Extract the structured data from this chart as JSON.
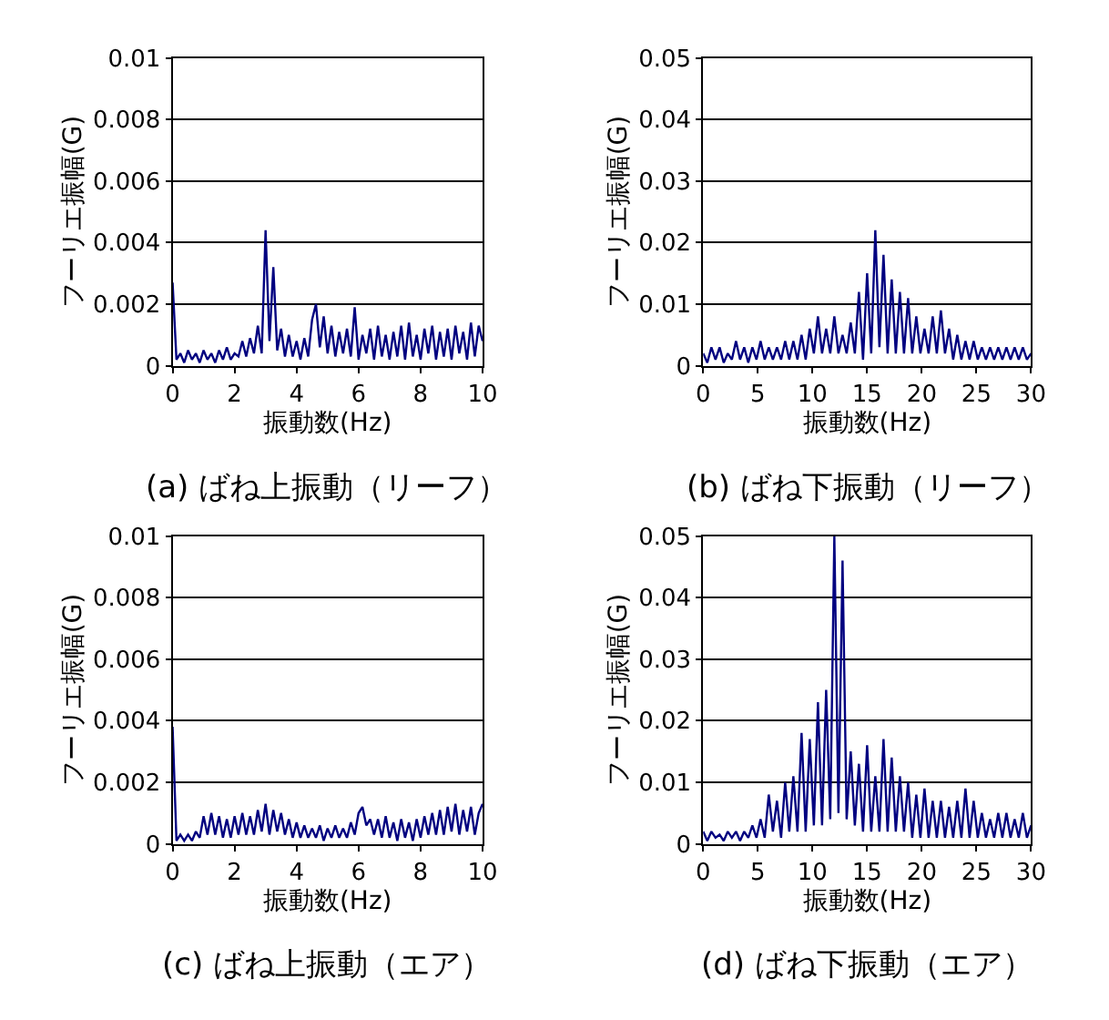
{
  "chart_data": [
    {
      "type": "line",
      "title": "(a) ばね上振動（リーフ）",
      "xlabel": "振動数(Hz)",
      "ylabel": "フーリエ振幅(G)",
      "xlim": [
        0,
        10
      ],
      "xticks": [
        0,
        2,
        4,
        6,
        8,
        10
      ],
      "ylim": [
        0,
        0.01
      ],
      "yticks": [
        0,
        0.002,
        0.004,
        0.006,
        0.008,
        0.01
      ],
      "grid": "y",
      "series": [
        {
          "color": "#000080",
          "x": [
            0,
            0.125,
            0.25,
            0.375,
            0.5,
            0.625,
            0.75,
            0.875,
            1.0,
            1.125,
            1.25,
            1.375,
            1.5,
            1.625,
            1.75,
            1.875,
            2.0,
            2.125,
            2.25,
            2.375,
            2.5,
            2.625,
            2.75,
            2.875,
            3.0,
            3.125,
            3.25,
            3.375,
            3.5,
            3.625,
            3.75,
            3.875,
            4.0,
            4.125,
            4.25,
            4.375,
            4.5,
            4.625,
            4.75,
            4.875,
            5.0,
            5.125,
            5.25,
            5.375,
            5.5,
            5.625,
            5.75,
            5.875,
            6.0,
            6.125,
            6.25,
            6.375,
            6.5,
            6.625,
            6.75,
            6.875,
            7.0,
            7.125,
            7.25,
            7.375,
            7.5,
            7.625,
            7.75,
            7.875,
            8.0,
            8.125,
            8.25,
            8.375,
            8.5,
            8.625,
            8.75,
            8.875,
            9.0,
            9.125,
            9.25,
            9.375,
            9.5,
            9.625,
            9.75,
            9.875,
            10.0
          ],
          "values": [
            0.0027,
            0.0002,
            0.0004,
            0.0001,
            0.0005,
            0.0002,
            0.0004,
            0.0001,
            0.0005,
            0.0002,
            0.0004,
            0.0001,
            0.0005,
            0.0002,
            0.0006,
            0.0002,
            0.0004,
            0.0003,
            0.0008,
            0.0003,
            0.0009,
            0.0004,
            0.0013,
            0.0004,
            0.0044,
            0.0008,
            0.0032,
            0.0005,
            0.0012,
            0.0003,
            0.001,
            0.0003,
            0.0008,
            0.0002,
            0.0009,
            0.0003,
            0.0015,
            0.002,
            0.0006,
            0.0016,
            0.0004,
            0.0013,
            0.0003,
            0.0011,
            0.0004,
            0.0012,
            0.0003,
            0.0019,
            0.0002,
            0.001,
            0.0004,
            0.0012,
            0.0002,
            0.0013,
            0.0003,
            0.001,
            0.0002,
            0.0011,
            0.0003,
            0.0013,
            0.0002,
            0.0014,
            0.0003,
            0.001,
            0.0002,
            0.0012,
            0.0004,
            0.0013,
            0.0002,
            0.0011,
            0.0003,
            0.0012,
            0.0002,
            0.0013,
            0.0004,
            0.0011,
            0.0002,
            0.0014,
            0.0003,
            0.0013,
            0.0008
          ]
        }
      ]
    },
    {
      "type": "line",
      "title": "(b) ばね下振動（リーフ）",
      "xlabel": "振動数(Hz)",
      "ylabel": "フーリエ振幅(G)",
      "xlim": [
        0,
        30
      ],
      "xticks": [
        0,
        5,
        10,
        15,
        20,
        25,
        30
      ],
      "ylim": [
        0,
        0.05
      ],
      "yticks": [
        0,
        0.01,
        0.02,
        0.03,
        0.04,
        0.05
      ],
      "grid": "y",
      "series": [
        {
          "color": "#000080",
          "x": [
            0,
            0.375,
            0.75,
            1.125,
            1.5,
            1.875,
            2.25,
            2.625,
            3.0,
            3.375,
            3.75,
            4.125,
            4.5,
            4.875,
            5.25,
            5.625,
            6.0,
            6.375,
            6.75,
            7.125,
            7.5,
            7.875,
            8.25,
            8.625,
            9.0,
            9.375,
            9.75,
            10.125,
            10.5,
            10.875,
            11.25,
            11.625,
            12.0,
            12.375,
            12.75,
            13.125,
            13.5,
            13.875,
            14.25,
            14.625,
            15.0,
            15.375,
            15.75,
            16.125,
            16.5,
            16.875,
            17.25,
            17.625,
            18.0,
            18.375,
            18.75,
            19.125,
            19.5,
            19.875,
            20.25,
            20.625,
            21.0,
            21.375,
            21.75,
            22.125,
            22.5,
            22.875,
            23.25,
            23.625,
            24.0,
            24.375,
            24.75,
            25.125,
            25.5,
            25.875,
            26.25,
            26.625,
            27.0,
            27.375,
            27.75,
            28.125,
            28.5,
            28.875,
            29.25,
            29.625,
            30.0
          ],
          "values": [
            0.002,
            0.0005,
            0.003,
            0.001,
            0.003,
            0.0005,
            0.002,
            0.001,
            0.004,
            0.001,
            0.003,
            0.0005,
            0.003,
            0.001,
            0.004,
            0.001,
            0.003,
            0.001,
            0.003,
            0.001,
            0.004,
            0.001,
            0.004,
            0.001,
            0.005,
            0.001,
            0.006,
            0.002,
            0.008,
            0.002,
            0.006,
            0.002,
            0.008,
            0.002,
            0.005,
            0.002,
            0.007,
            0.002,
            0.012,
            0.001,
            0.015,
            0.002,
            0.022,
            0.003,
            0.018,
            0.002,
            0.014,
            0.002,
            0.012,
            0.002,
            0.011,
            0.002,
            0.008,
            0.002,
            0.006,
            0.002,
            0.008,
            0.002,
            0.009,
            0.002,
            0.006,
            0.001,
            0.005,
            0.001,
            0.004,
            0.001,
            0.004,
            0.001,
            0.003,
            0.001,
            0.003,
            0.001,
            0.003,
            0.001,
            0.003,
            0.001,
            0.003,
            0.001,
            0.003,
            0.001,
            0.002
          ]
        }
      ]
    },
    {
      "type": "line",
      "title": "(c) ばね上振動（エア）",
      "xlabel": "振動数(Hz)",
      "ylabel": "フーリエ振幅(G)",
      "xlim": [
        0,
        10
      ],
      "xticks": [
        0,
        2,
        4,
        6,
        8,
        10
      ],
      "ylim": [
        0,
        0.01
      ],
      "yticks": [
        0,
        0.002,
        0.004,
        0.006,
        0.008,
        0.01
      ],
      "grid": "y",
      "series": [
        {
          "color": "#000080",
          "x": [
            0,
            0.125,
            0.25,
            0.375,
            0.5,
            0.625,
            0.75,
            0.875,
            1.0,
            1.125,
            1.25,
            1.375,
            1.5,
            1.625,
            1.75,
            1.875,
            2.0,
            2.125,
            2.25,
            2.375,
            2.5,
            2.625,
            2.75,
            2.875,
            3.0,
            3.125,
            3.25,
            3.375,
            3.5,
            3.625,
            3.75,
            3.875,
            4.0,
            4.125,
            4.25,
            4.375,
            4.5,
            4.625,
            4.75,
            4.875,
            5.0,
            5.125,
            5.25,
            5.375,
            5.5,
            5.625,
            5.75,
            5.875,
            6.0,
            6.125,
            6.25,
            6.375,
            6.5,
            6.625,
            6.75,
            6.875,
            7.0,
            7.125,
            7.25,
            7.375,
            7.5,
            7.625,
            7.75,
            7.875,
            8.0,
            8.125,
            8.25,
            8.375,
            8.5,
            8.625,
            8.75,
            8.875,
            9.0,
            9.125,
            9.25,
            9.375,
            9.5,
            9.625,
            9.75,
            9.875,
            10.0
          ],
          "values": [
            0.0038,
            0.0001,
            0.0003,
            0.0001,
            0.0003,
            0.0001,
            0.0004,
            0.0002,
            0.0009,
            0.0003,
            0.001,
            0.0003,
            0.0009,
            0.0002,
            0.0008,
            0.0002,
            0.0009,
            0.0003,
            0.001,
            0.0003,
            0.0009,
            0.0003,
            0.0011,
            0.0004,
            0.0013,
            0.0003,
            0.0011,
            0.0004,
            0.001,
            0.0003,
            0.0008,
            0.0002,
            0.0007,
            0.0002,
            0.0006,
            0.0002,
            0.0005,
            0.0002,
            0.0006,
            0.0001,
            0.0005,
            0.0002,
            0.0006,
            0.0002,
            0.0005,
            0.0002,
            0.0007,
            0.0003,
            0.001,
            0.0012,
            0.0006,
            0.0008,
            0.0003,
            0.0008,
            0.0002,
            0.0009,
            0.0002,
            0.0007,
            0.0001,
            0.0008,
            0.0002,
            0.0007,
            0.0001,
            0.0008,
            0.0002,
            0.0009,
            0.0003,
            0.001,
            0.0003,
            0.0011,
            0.0003,
            0.0012,
            0.0004,
            0.0013,
            0.0003,
            0.0011,
            0.0004,
            0.0012,
            0.0003,
            0.001,
            0.0013
          ]
        }
      ]
    },
    {
      "type": "line",
      "title": "(d) ばね下振動（エア）",
      "xlabel": "振動数(Hz)",
      "ylabel": "フーリエ振幅(G)",
      "xlim": [
        0,
        30
      ],
      "xticks": [
        0,
        5,
        10,
        15,
        20,
        25,
        30
      ],
      "ylim": [
        0,
        0.05
      ],
      "yticks": [
        0,
        0.01,
        0.02,
        0.03,
        0.04,
        0.05
      ],
      "grid": "y",
      "series": [
        {
          "color": "#000080",
          "x": [
            0,
            0.375,
            0.75,
            1.125,
            1.5,
            1.875,
            2.25,
            2.625,
            3.0,
            3.375,
            3.75,
            4.125,
            4.5,
            4.875,
            5.25,
            5.625,
            6.0,
            6.375,
            6.75,
            7.125,
            7.5,
            7.875,
            8.25,
            8.625,
            9.0,
            9.375,
            9.75,
            10.125,
            10.5,
            10.875,
            11.25,
            11.625,
            12.0,
            12.375,
            12.75,
            13.125,
            13.5,
            13.875,
            14.25,
            14.625,
            15.0,
            15.375,
            15.75,
            16.125,
            16.5,
            16.875,
            17.25,
            17.625,
            18.0,
            18.375,
            18.75,
            19.125,
            19.5,
            19.875,
            20.25,
            20.625,
            21.0,
            21.375,
            21.75,
            22.125,
            22.5,
            22.875,
            23.25,
            23.625,
            24.0,
            24.375,
            24.75,
            25.125,
            25.5,
            25.875,
            26.25,
            26.625,
            27.0,
            27.375,
            27.75,
            28.125,
            28.5,
            28.875,
            29.25,
            29.625,
            30.0
          ],
          "values": [
            0.002,
            0.0005,
            0.002,
            0.001,
            0.0015,
            0.0005,
            0.002,
            0.001,
            0.002,
            0.0005,
            0.002,
            0.001,
            0.003,
            0.001,
            0.004,
            0.001,
            0.008,
            0.002,
            0.007,
            0.001,
            0.01,
            0.002,
            0.011,
            0.002,
            0.018,
            0.002,
            0.017,
            0.003,
            0.023,
            0.003,
            0.025,
            0.004,
            0.05,
            0.005,
            0.046,
            0.004,
            0.015,
            0.003,
            0.013,
            0.002,
            0.016,
            0.002,
            0.011,
            0.002,
            0.017,
            0.002,
            0.014,
            0.002,
            0.011,
            0.002,
            0.01,
            0.001,
            0.008,
            0.001,
            0.009,
            0.001,
            0.007,
            0.001,
            0.007,
            0.001,
            0.006,
            0.001,
            0.007,
            0.001,
            0.009,
            0.001,
            0.007,
            0.001,
            0.005,
            0.001,
            0.004,
            0.001,
            0.005,
            0.001,
            0.005,
            0.001,
            0.004,
            0.001,
            0.005,
            0.001,
            0.003
          ]
        }
      ]
    }
  ]
}
